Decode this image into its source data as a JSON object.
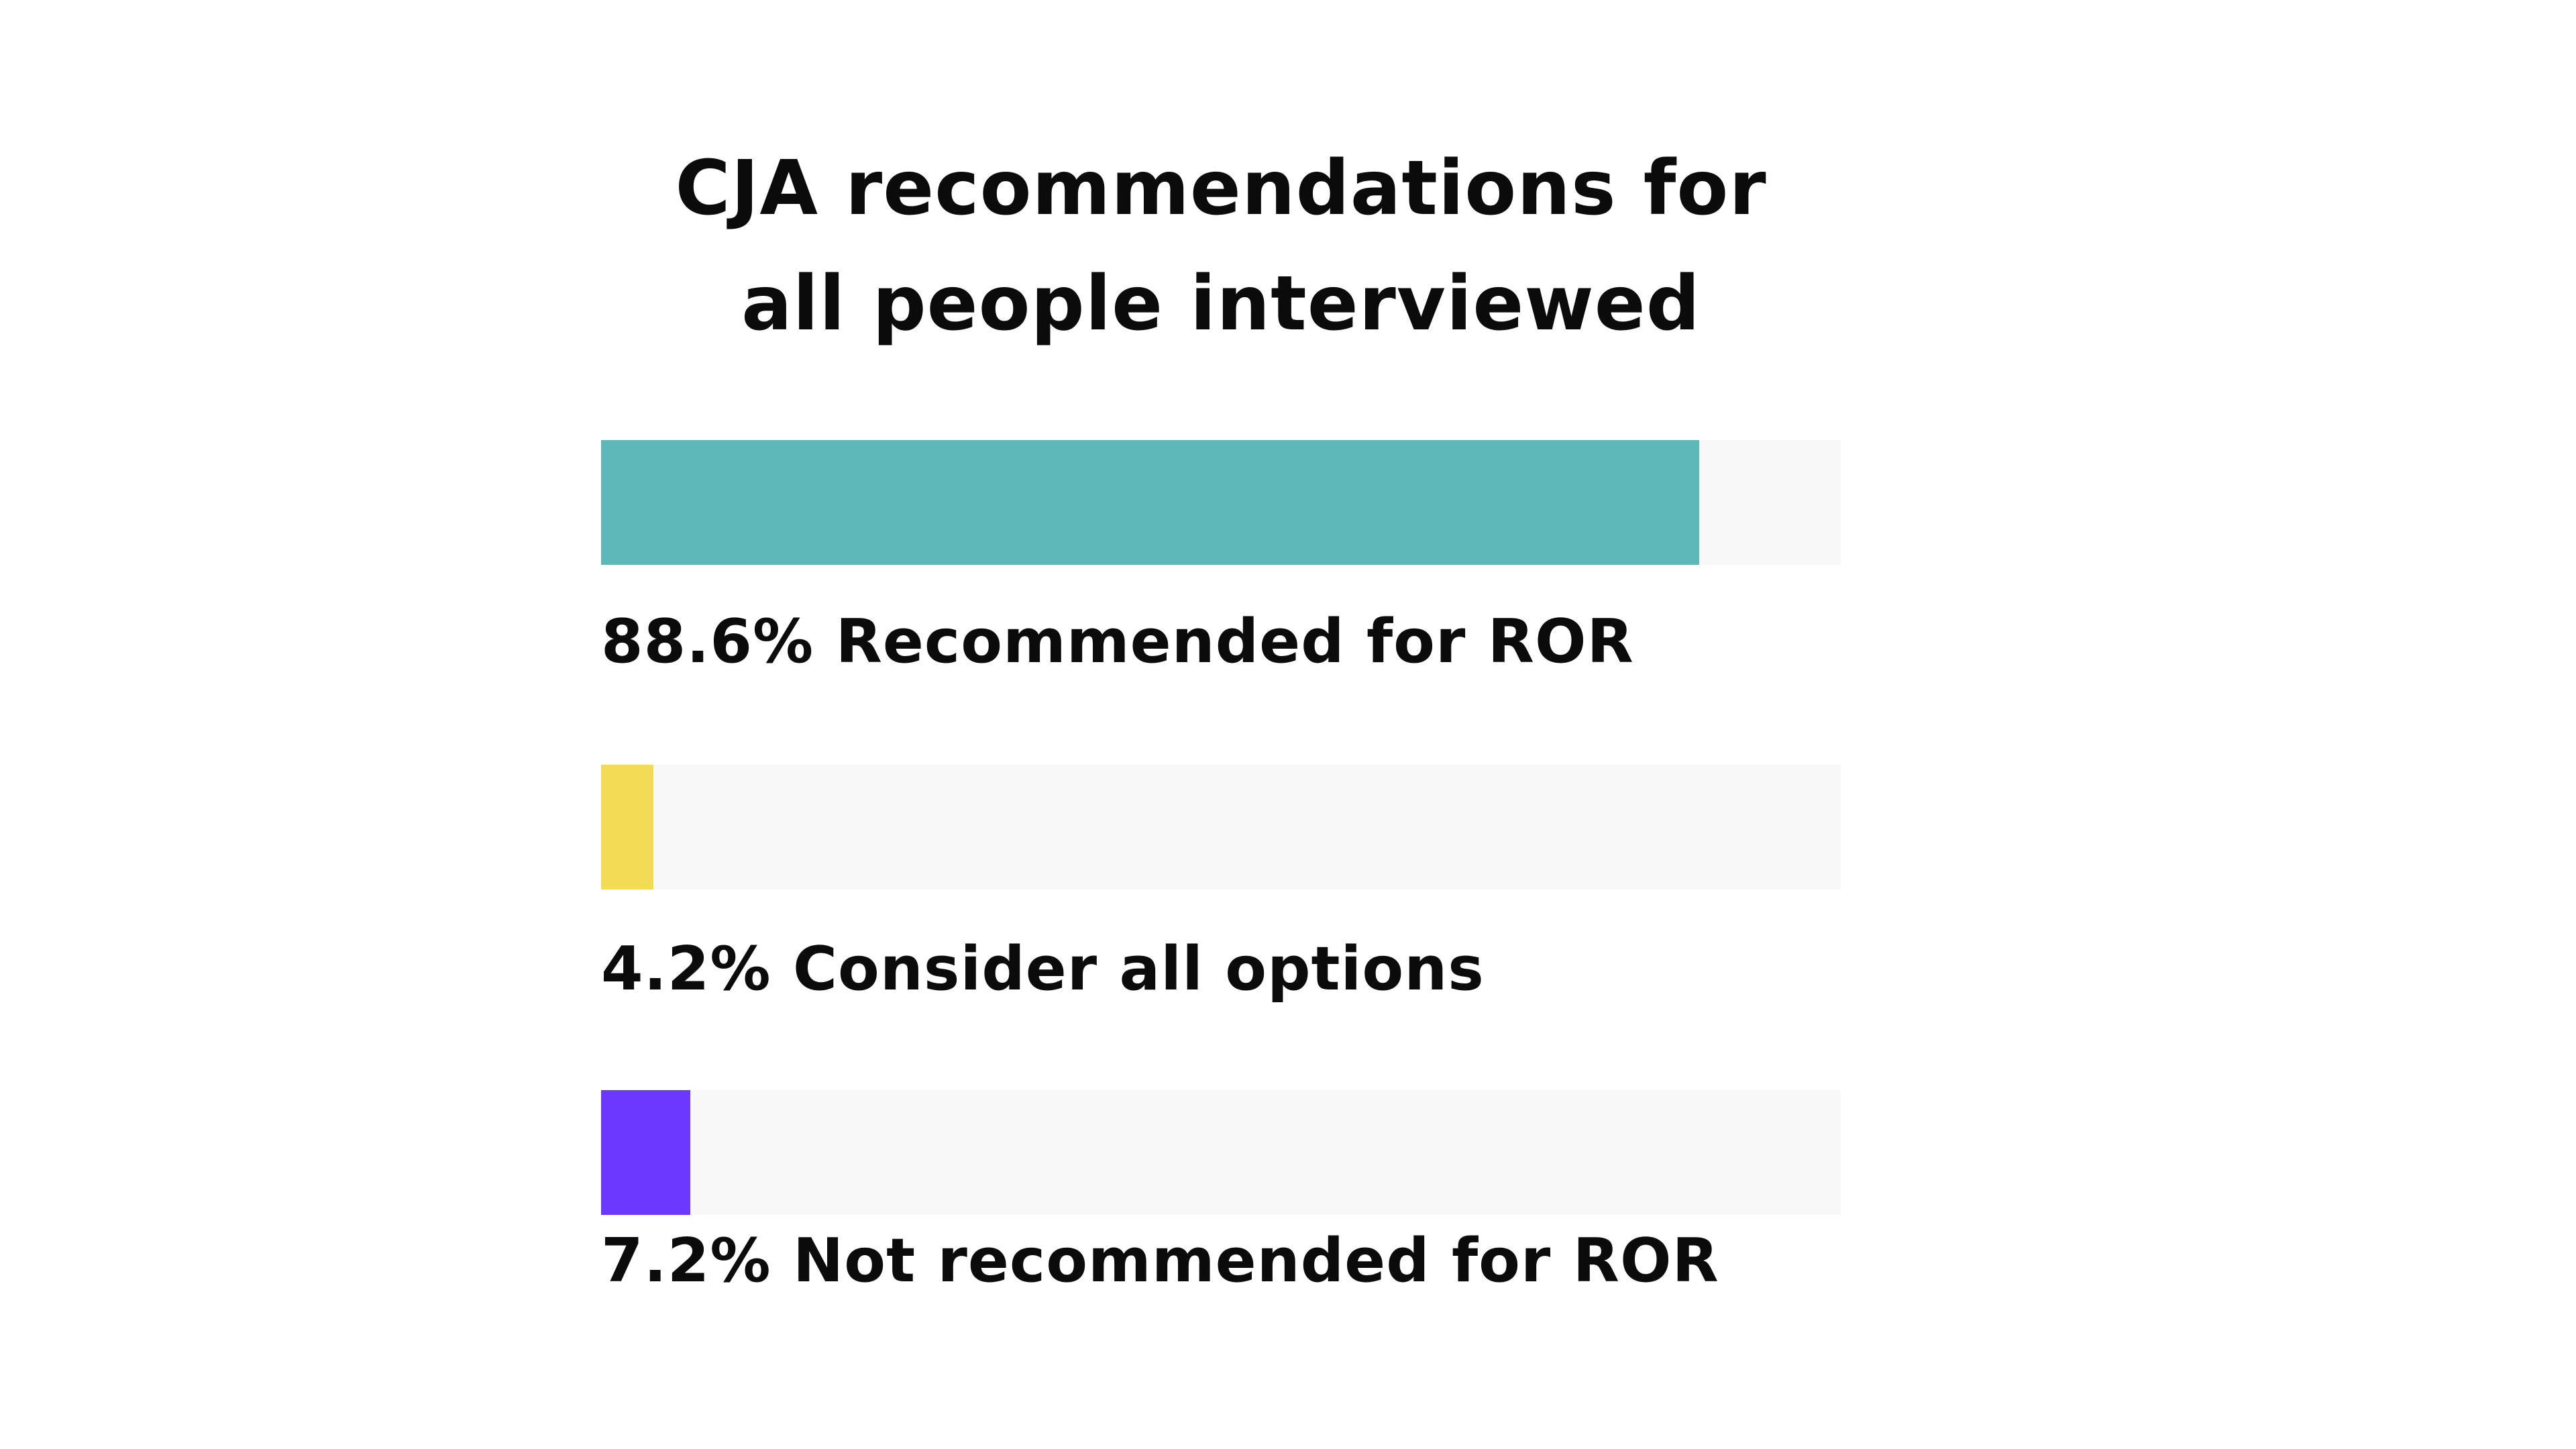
{
  "chart_data": {
    "type": "bar",
    "orientation": "horizontal",
    "title": "CJA recommendations for all people interviewed",
    "xlim": [
      0,
      100
    ],
    "grid": false,
    "legend": "none",
    "track_color": "#f8f8f8",
    "bars": [
      {
        "value": 88.6,
        "label": "88.6% Recommended for ROR",
        "color": "#5eb8ba"
      },
      {
        "value": 4.2,
        "label": "4.2% Consider all options",
        "color": "#f3dc55"
      },
      {
        "value": 7.2,
        "label": "7.2% Not recommended for ROR",
        "color": "#6a38ff"
      }
    ]
  }
}
